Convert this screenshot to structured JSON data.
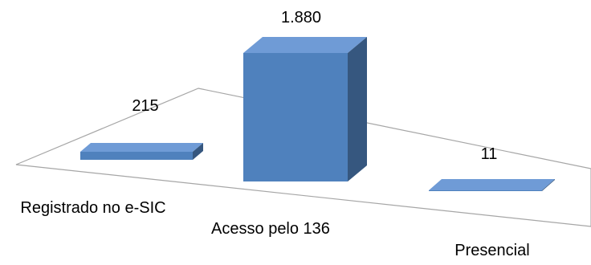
{
  "chart_data": {
    "type": "bar",
    "style": "3d-perspective",
    "categories": [
      "Registrado no e-SIC",
      "Acesso pelo 136",
      "Presencial"
    ],
    "values": [
      215,
      1880,
      11
    ],
    "value_labels": [
      "215",
      "1.880",
      "11"
    ],
    "title": "",
    "xlabel": "",
    "ylabel": "",
    "ylim": [
      0,
      1880
    ],
    "grid": false,
    "legend": "none"
  },
  "colors": {
    "bar_front": "#4f81bd",
    "bar_top": "#6f9bd6",
    "bar_side": "#36577f",
    "floor_line": "#a6a6a6",
    "background": "#ffffff"
  }
}
